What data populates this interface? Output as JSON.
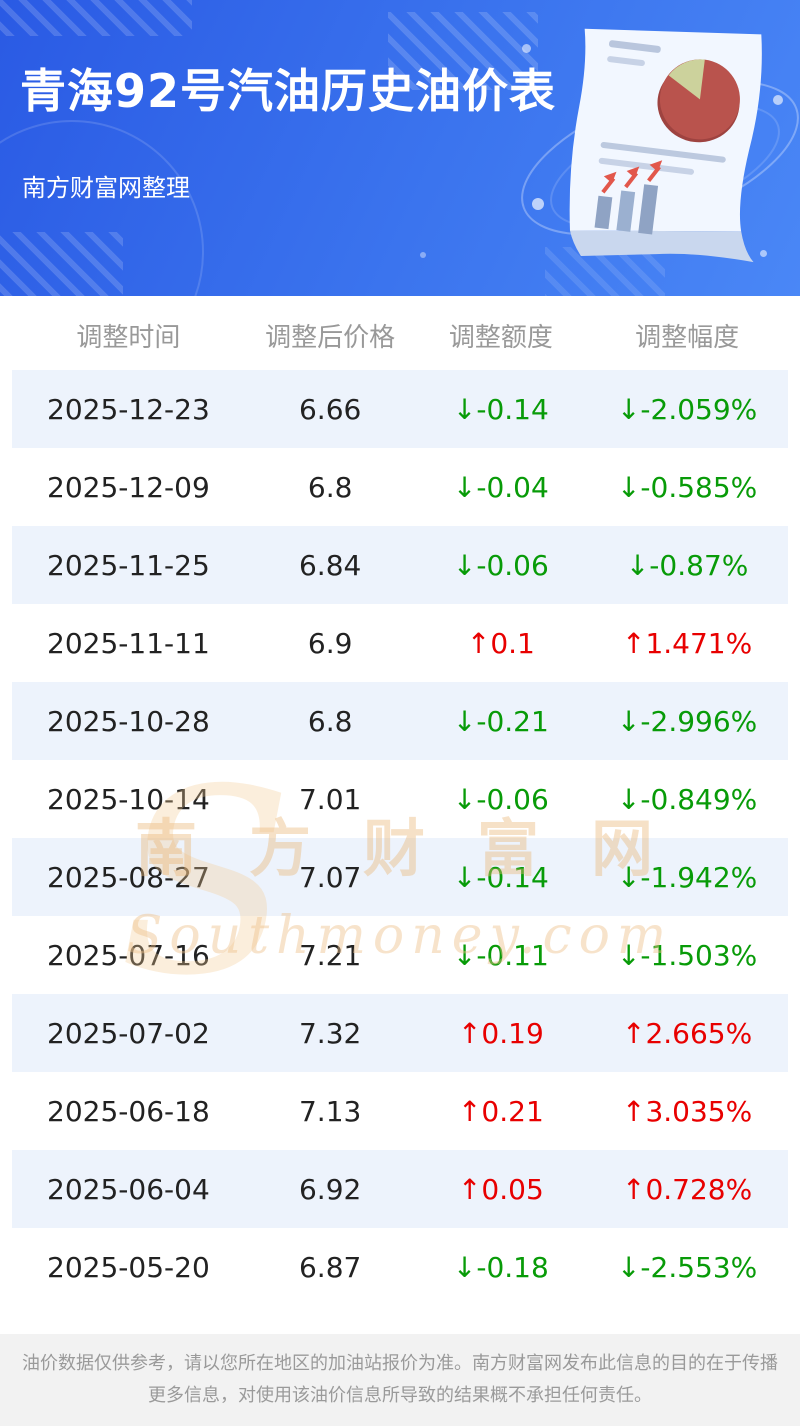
{
  "header": {
    "title": "青海92号汽油历史油价表",
    "subtitle": "南方财富网整理"
  },
  "table": {
    "columns": [
      "调整时间",
      "调整后价格",
      "调整额度",
      "调整幅度"
    ],
    "rows": [
      {
        "date": "2025-12-23",
        "price": "6.66",
        "change": "↓-0.14",
        "percent": "↓-2.059%",
        "direction": "down"
      },
      {
        "date": "2025-12-09",
        "price": "6.8",
        "change": "↓-0.04",
        "percent": "↓-0.585%",
        "direction": "down"
      },
      {
        "date": "2025-11-25",
        "price": "6.84",
        "change": "↓-0.06",
        "percent": "↓-0.87%",
        "direction": "down"
      },
      {
        "date": "2025-11-11",
        "price": "6.9",
        "change": "↑0.1",
        "percent": "↑1.471%",
        "direction": "up"
      },
      {
        "date": "2025-10-28",
        "price": "6.8",
        "change": "↓-0.21",
        "percent": "↓-2.996%",
        "direction": "down"
      },
      {
        "date": "2025-10-14",
        "price": "7.01",
        "change": "↓-0.06",
        "percent": "↓-0.849%",
        "direction": "down"
      },
      {
        "date": "2025-08-27",
        "price": "7.07",
        "change": "↓-0.14",
        "percent": "↓-1.942%",
        "direction": "down"
      },
      {
        "date": "2025-07-16",
        "price": "7.21",
        "change": "↓-0.11",
        "percent": "↓-1.503%",
        "direction": "down"
      },
      {
        "date": "2025-07-02",
        "price": "7.32",
        "change": "↑0.19",
        "percent": "↑2.665%",
        "direction": "up"
      },
      {
        "date": "2025-06-18",
        "price": "7.13",
        "change": "↑0.21",
        "percent": "↑3.035%",
        "direction": "up"
      },
      {
        "date": "2025-06-04",
        "price": "6.92",
        "change": "↑0.05",
        "percent": "↑0.728%",
        "direction": "up"
      },
      {
        "date": "2025-05-20",
        "price": "6.87",
        "change": "↓-0.18",
        "percent": "↓-2.553%",
        "direction": "down"
      }
    ]
  },
  "watermark": {
    "logo_letter": "S",
    "line1": "南方财富网",
    "line2": "Southmoney.com"
  },
  "footer": {
    "text": "油价数据仅供参考，请以您所在地区的加油站报价为准。南方财富网发布此信息的目的在于传播更多信息，对使用该油价信息所导致的结果概不承担任何责任。"
  },
  "colors": {
    "up": "#e80000",
    "down": "#089b08",
    "header_gradient_start": "#2a5ae4",
    "header_gradient_end": "#4a87f6",
    "alt_row": "#edf3fc"
  }
}
